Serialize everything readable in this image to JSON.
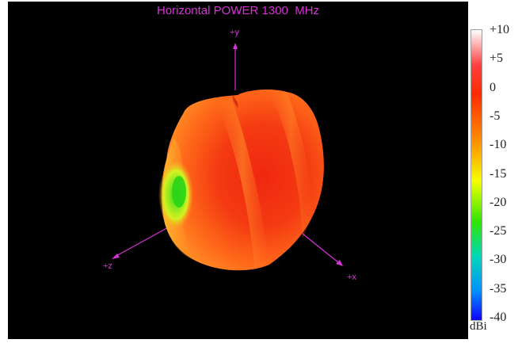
{
  "title": "Horizontal POWER 1300  MHz",
  "axes": {
    "y_label": "+y",
    "z_label": "+z",
    "x_label": "+x"
  },
  "colorbar": {
    "unit": "dBi",
    "max": 10,
    "min": -40,
    "ticks": [
      "+10",
      "+5",
      "0",
      "-5",
      "-10",
      "-15",
      "-20",
      "-25",
      "-30",
      "-35",
      "-40"
    ],
    "colors": {
      "top": "#ffffff",
      "p10": "#ff4040",
      "p20": "#ff2a00",
      "p40": "#ff9a00",
      "p55": "#f6ff00",
      "p70": "#30e600",
      "p80": "#00d8b8",
      "p90": "#0090ff",
      "bottom": "#1000ff"
    }
  },
  "colors": {
    "background": "#000000",
    "axis": "#d733d7",
    "pattern_red": "#f13a12",
    "pattern_orange": "#ff8a20",
    "pattern_green": "#55e020"
  }
}
